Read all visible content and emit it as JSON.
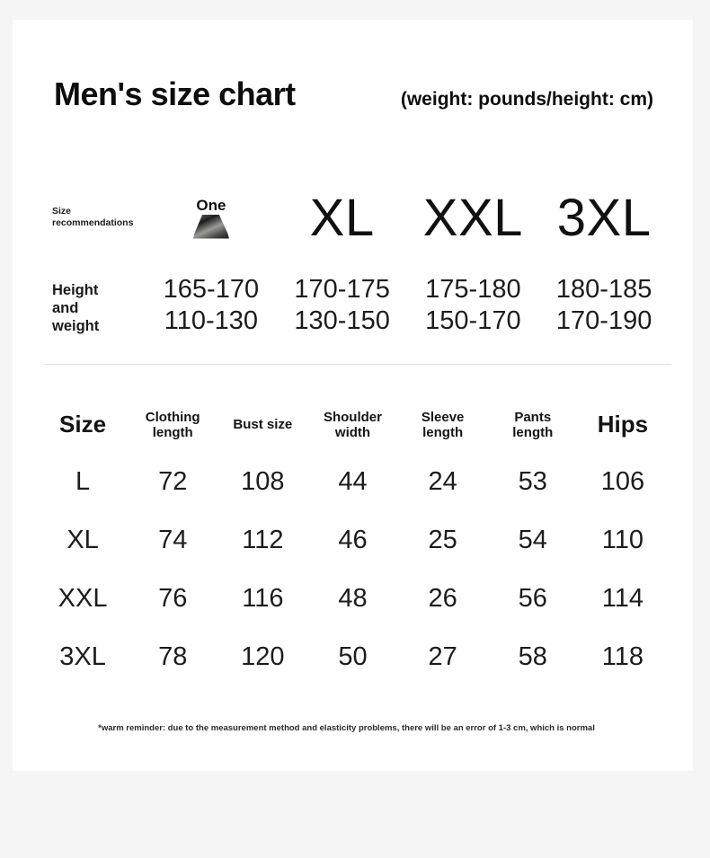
{
  "page": {
    "title": "Men's size chart",
    "subtitle": "(weight: pounds/height: cm)"
  },
  "recommendation": {
    "label": "Size recommendations",
    "height_weight_label": "Height and weight",
    "thumbnail": "garment-thumbnail",
    "columns": [
      {
        "size": "One",
        "height": "165-170",
        "weight": "110-130"
      },
      {
        "size": "XL",
        "height": "170-175",
        "weight": "130-150"
      },
      {
        "size": "XXL",
        "height": "175-180",
        "weight": "150-170"
      },
      {
        "size": "3XL",
        "height": "180-185",
        "weight": "170-190"
      }
    ]
  },
  "size_table": {
    "headers": [
      "Size",
      "Clothing length",
      "Bust size",
      "Shoulder width",
      "Sleeve length",
      "Pants length",
      "Hips"
    ],
    "rows": [
      {
        "size": "L",
        "values": [
          "72",
          "108",
          "44",
          "24",
          "53",
          "106"
        ]
      },
      {
        "size": "XL",
        "values": [
          "74",
          "112",
          "46",
          "25",
          "54",
          "110"
        ]
      },
      {
        "size": "XXL",
        "values": [
          "76",
          "116",
          "48",
          "26",
          "56",
          "114"
        ]
      },
      {
        "size": "3XL",
        "values": [
          "78",
          "120",
          "50",
          "27",
          "58",
          "118"
        ]
      }
    ]
  },
  "footnote": "*warm reminder: due to the measurement method and elasticity problems, there will be an error of 1-3 cm, which is normal"
}
